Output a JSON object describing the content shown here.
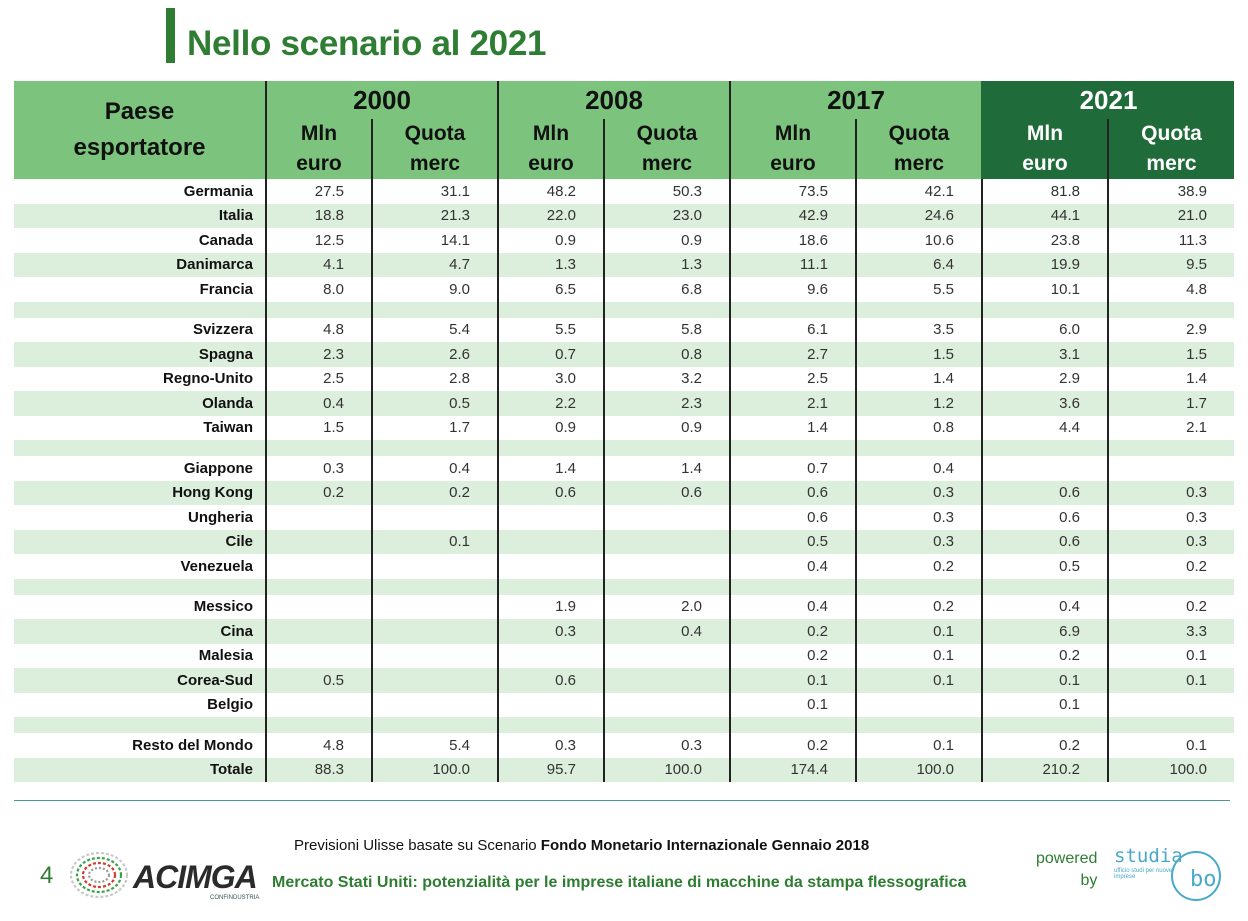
{
  "title": "Nello scenario al 2021",
  "table": {
    "country_header": "Paese esportatore",
    "years": [
      "2000",
      "2008",
      "2017",
      "2021"
    ],
    "sub_headers": {
      "mln": "Mln euro",
      "quota": "Quota merc"
    },
    "groups": [
      [
        [
          "Germania",
          "27.5",
          "31.1",
          "48.2",
          "50.3",
          "73.5",
          "42.1",
          "81.8",
          "38.9"
        ],
        [
          "Italia",
          "18.8",
          "21.3",
          "22.0",
          "23.0",
          "42.9",
          "24.6",
          "44.1",
          "21.0"
        ],
        [
          "Canada",
          "12.5",
          "14.1",
          "0.9",
          "0.9",
          "18.6",
          "10.6",
          "23.8",
          "11.3"
        ],
        [
          "Danimarca",
          "4.1",
          "4.7",
          "1.3",
          "1.3",
          "11.1",
          "6.4",
          "19.9",
          "9.5"
        ],
        [
          "Francia",
          "8.0",
          "9.0",
          "6.5",
          "6.8",
          "9.6",
          "5.5",
          "10.1",
          "4.8"
        ]
      ],
      [
        [
          "Svizzera",
          "4.8",
          "5.4",
          "5.5",
          "5.8",
          "6.1",
          "3.5",
          "6.0",
          "2.9"
        ],
        [
          "Spagna",
          "2.3",
          "2.6",
          "0.7",
          "0.8",
          "2.7",
          "1.5",
          "3.1",
          "1.5"
        ],
        [
          "Regno-Unito",
          "2.5",
          "2.8",
          "3.0",
          "3.2",
          "2.5",
          "1.4",
          "2.9",
          "1.4"
        ],
        [
          "Olanda",
          "0.4",
          "0.5",
          "2.2",
          "2.3",
          "2.1",
          "1.2",
          "3.6",
          "1.7"
        ],
        [
          "Taiwan",
          "1.5",
          "1.7",
          "0.9",
          "0.9",
          "1.4",
          "0.8",
          "4.4",
          "2.1"
        ]
      ],
      [
        [
          "Giappone",
          "0.3",
          "0.4",
          "1.4",
          "1.4",
          "0.7",
          "0.4",
          "",
          ""
        ],
        [
          "Hong Kong",
          "0.2",
          "0.2",
          "0.6",
          "0.6",
          "0.6",
          "0.3",
          "0.6",
          "0.3"
        ],
        [
          "Ungheria",
          "",
          "",
          "",
          "",
          "0.6",
          "0.3",
          "0.6",
          "0.3"
        ],
        [
          "Cile",
          "",
          "0.1",
          "",
          "",
          "0.5",
          "0.3",
          "0.6",
          "0.3"
        ],
        [
          "Venezuela",
          "",
          "",
          "",
          "",
          "0.4",
          "0.2",
          "0.5",
          "0.2"
        ]
      ],
      [
        [
          "Messico",
          "",
          "",
          "1.9",
          "2.0",
          "0.4",
          "0.2",
          "0.4",
          "0.2"
        ],
        [
          "Cina",
          "",
          "",
          "0.3",
          "0.4",
          "0.2",
          "0.1",
          "6.9",
          "3.3"
        ],
        [
          "Malesia",
          "",
          "",
          "",
          "",
          "0.2",
          "0.1",
          "0.2",
          "0.1"
        ],
        [
          "Corea-Sud",
          "0.5",
          "",
          "0.6",
          "",
          "0.1",
          "0.1",
          "0.1",
          "0.1"
        ],
        [
          "Belgio",
          "",
          "",
          "",
          "",
          "0.1",
          "",
          "0.1",
          ""
        ]
      ],
      [
        [
          "Resto del Mondo",
          "4.8",
          "5.4",
          "0.3",
          "0.3",
          "0.2",
          "0.1",
          "0.2",
          "0.1"
        ],
        [
          "Totale",
          "88.3",
          "100.0",
          "95.7",
          "100.0",
          "174.4",
          "100.0",
          "210.2",
          "100.0"
        ]
      ]
    ]
  },
  "footer": {
    "source_prefix": "Previsioni Ulisse basate su Scenario ",
    "source_bold": "Fondo Monetario Internazionale Gennaio 2018",
    "page_number": "4",
    "logo": "ACIMGA",
    "logo_sub": "CONFINDUSTRIA",
    "subtitle": "Mercato Stati Uniti: potenzialità per le imprese italiane di macchine da stampa flessografica",
    "powered_line1": "powered",
    "powered_line2": "by",
    "studio_name": "studia",
    "studio_sub": "ufficio studi per nuove imprese",
    "studio_bo": "bo"
  },
  "colors": {
    "accent_green": "#2e7d32",
    "header_green": "#7cc37d",
    "header_dark": "#1f6b3a",
    "row_stripe": "#dceedc",
    "studio_blue": "#4aa9c9"
  }
}
